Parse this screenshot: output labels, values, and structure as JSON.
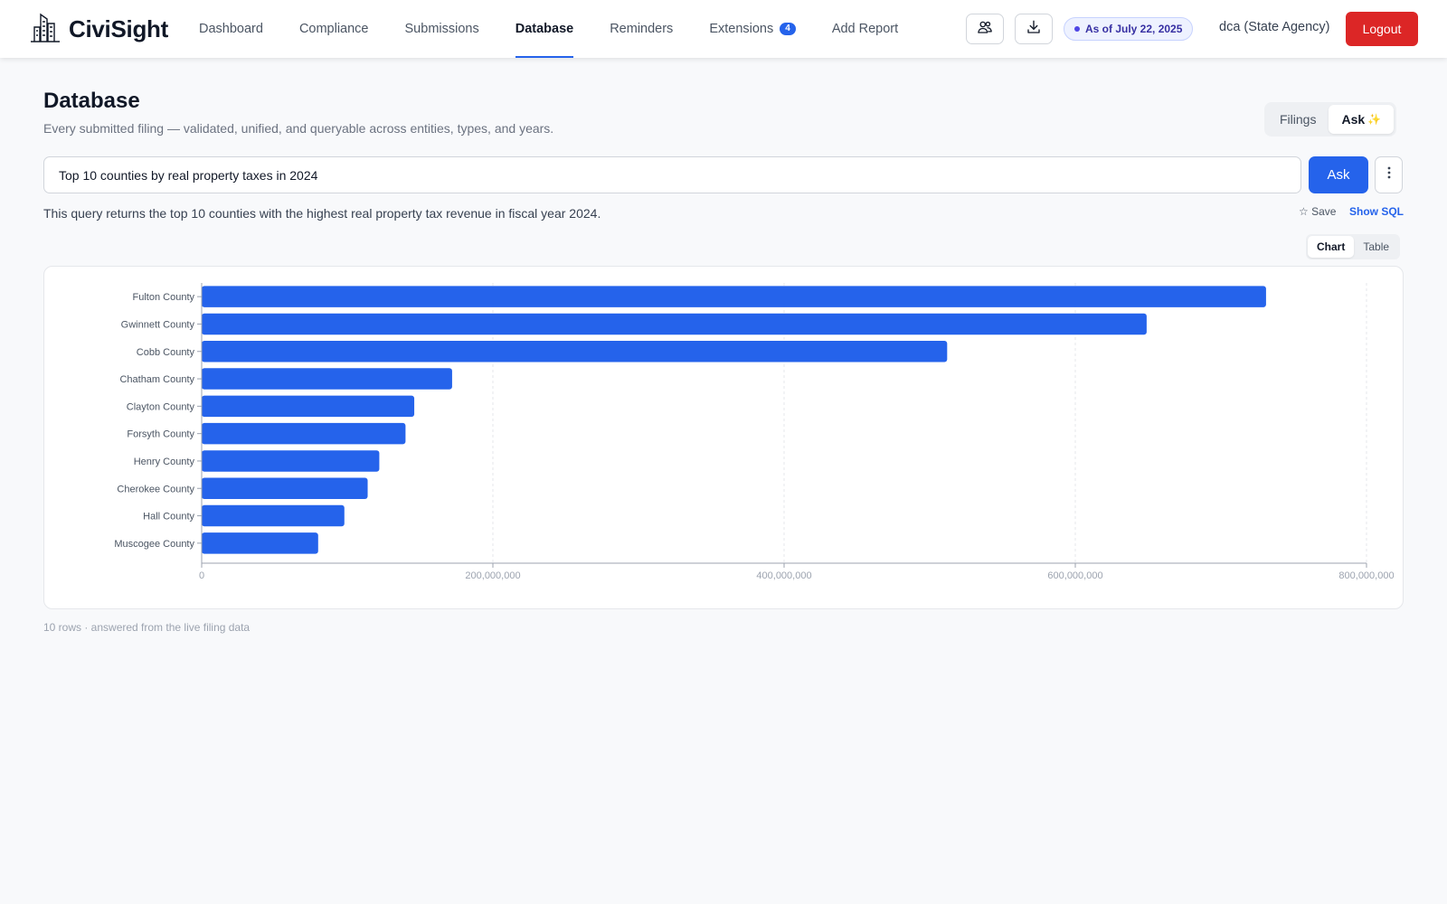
{
  "app": {
    "brand": "CiviSight"
  },
  "nav": {
    "items": [
      {
        "label": "Dashboard"
      },
      {
        "label": "Compliance"
      },
      {
        "label": "Submissions"
      },
      {
        "label": "Database",
        "active": true
      },
      {
        "label": "Reminders"
      },
      {
        "label": "Extensions",
        "badge": "4"
      },
      {
        "label": "Add Report"
      }
    ]
  },
  "header_right": {
    "as_of": "As of July 22, 2025",
    "user": "dca (State Agency)",
    "logout_label": "Logout"
  },
  "page": {
    "title": "Database",
    "subtitle": "Every submitted filing — validated, unified, and queryable across entities, types, and years.",
    "mode_tabs": [
      {
        "label": "Filings"
      },
      {
        "label": "Ask",
        "active": true,
        "icon": "sparkle-icon"
      }
    ]
  },
  "query": {
    "value": "Top 10 counties by real property taxes in 2024",
    "ask_label": "Ask",
    "summary": "This query returns the top 10 counties with the highest real property tax revenue in fiscal year 2024.",
    "save_label": "☆ Save",
    "show_sql_label": "Show SQL"
  },
  "view_toggle": [
    {
      "label": "Chart",
      "active": true
    },
    {
      "label": "Table"
    }
  ],
  "footer": {
    "note": "10 rows · answered from the live filing data"
  },
  "colors": {
    "bar": "#2563eb",
    "accent": "#2563eb",
    "logout": "#dc2626"
  },
  "chart_data": {
    "type": "bar",
    "orientation": "horizontal",
    "categories": [
      "Fulton County",
      "Gwinnett County",
      "Cobb County",
      "Chatham County",
      "Clayton County",
      "Forsyth County",
      "Henry County",
      "Cherokee County",
      "Hall County",
      "Muscogee County"
    ],
    "values": [
      731000000,
      649000000,
      512000000,
      172000000,
      146000000,
      140000000,
      122000000,
      114000000,
      98000000,
      80000000
    ],
    "x_ticks": [
      "0",
      "200,000,000",
      "400,000,000",
      "600,000,000",
      "800,000,000"
    ],
    "xlim": [
      0,
      800000000
    ],
    "grid": "vertical dashed",
    "title": "",
    "xlabel": "",
    "ylabel": ""
  }
}
